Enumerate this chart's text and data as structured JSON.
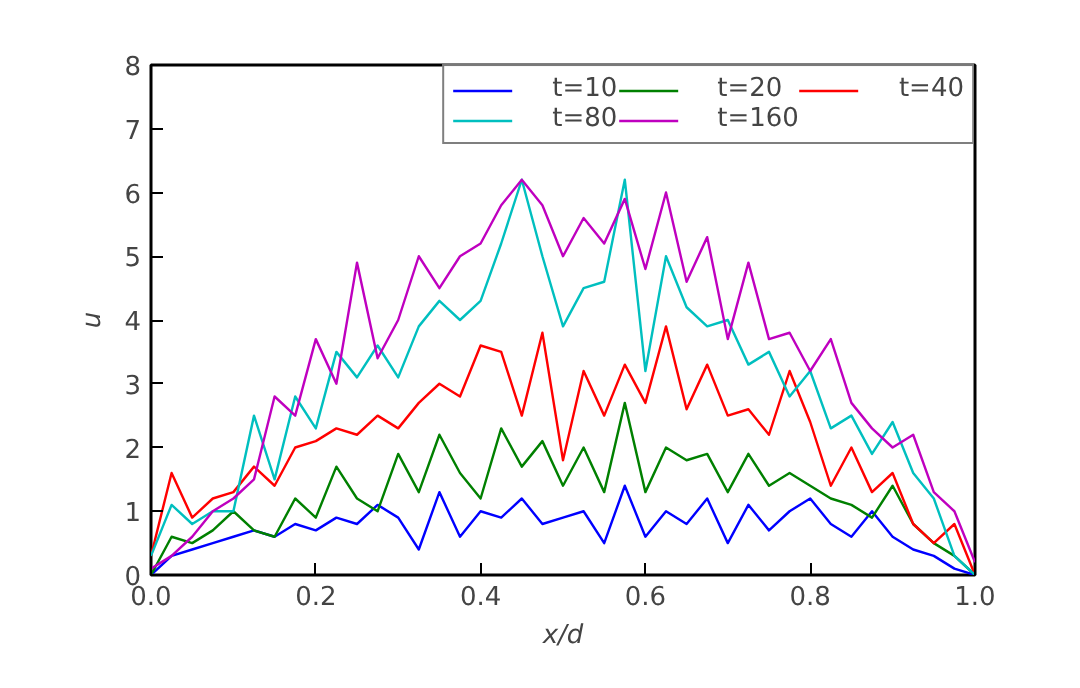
{
  "chart_data": {
    "type": "line",
    "xlabel": "x/d",
    "ylabel": "u",
    "xlim": [
      0.0,
      1.0
    ],
    "ylim": [
      0,
      8
    ],
    "xticks": [
      {
        "value": 0,
        "label": "0.0"
      },
      {
        "value": 0.2,
        "label": "0.2"
      },
      {
        "value": 0.4,
        "label": "0.4"
      },
      {
        "value": 0.6,
        "label": "0.6"
      },
      {
        "value": 0.8,
        "label": "0.8"
      },
      {
        "value": 1,
        "label": "1.0"
      }
    ],
    "yticks": [
      0,
      1,
      2,
      3,
      4,
      5,
      6,
      7,
      8
    ],
    "grid": false,
    "legend": "top right",
    "marker": "none",
    "line_style": "solid",
    "x": [
      0,
      0.025,
      0.05,
      0.075,
      0.1,
      0.125,
      0.15,
      0.175,
      0.2,
      0.225,
      0.25,
      0.275,
      0.3,
      0.325,
      0.35,
      0.375,
      0.4,
      0.425,
      0.45,
      0.475,
      0.5,
      0.525,
      0.55,
      0.575,
      0.6,
      0.625,
      0.65,
      0.675,
      0.7,
      0.725,
      0.75,
      0.775,
      0.8,
      0.825,
      0.85,
      0.875,
      0.9,
      0.925,
      0.95,
      0.975,
      1.0
    ],
    "series": [
      {
        "name": "t=10",
        "color": "#0000ff",
        "values": [
          0,
          0.3,
          0.4,
          0.5,
          0.6,
          0.7,
          0.6,
          0.8,
          0.7,
          0.9,
          0.8,
          1.1,
          0.9,
          0.4,
          1.3,
          0.6,
          1.0,
          0.9,
          1.2,
          0.8,
          0.9,
          1.0,
          0.5,
          1.4,
          0.6,
          1.0,
          0.8,
          1.2,
          0.5,
          1.1,
          0.7,
          1.0,
          1.2,
          0.8,
          0.6,
          1.0,
          0.6,
          0.4,
          0.3,
          0.1,
          0
        ]
      },
      {
        "name": "t=20",
        "color": "#008000",
        "values": [
          0,
          0.6,
          0.5,
          0.7,
          1.0,
          0.7,
          0.6,
          1.2,
          0.9,
          1.7,
          1.2,
          1.0,
          1.9,
          1.3,
          2.2,
          1.6,
          1.2,
          2.3,
          1.7,
          2.1,
          1.4,
          2.0,
          1.3,
          2.7,
          1.3,
          2.0,
          1.8,
          1.9,
          1.3,
          1.9,
          1.4,
          1.6,
          1.4,
          1.2,
          1.1,
          0.9,
          1.4,
          0.8,
          0.5,
          0.3,
          0
        ]
      },
      {
        "name": "t=40",
        "color": "#ff0000",
        "values": [
          0.3,
          1.6,
          0.9,
          1.2,
          1.3,
          1.7,
          1.4,
          2.0,
          2.1,
          2.3,
          2.2,
          2.5,
          2.3,
          2.7,
          3.0,
          2.8,
          3.6,
          3.5,
          2.5,
          3.8,
          1.8,
          3.2,
          2.5,
          3.3,
          2.7,
          3.9,
          2.6,
          3.3,
          2.5,
          2.6,
          2.2,
          3.2,
          2.4,
          1.4,
          2.0,
          1.3,
          1.6,
          0.8,
          0.5,
          0.8,
          0
        ]
      },
      {
        "name": "t=80",
        "color": "#00bfbf",
        "values": [
          0.3,
          1.1,
          0.8,
          1.0,
          1.0,
          2.5,
          1.5,
          2.8,
          2.3,
          3.5,
          3.1,
          3.6,
          3.1,
          3.9,
          4.3,
          4.0,
          4.3,
          5.2,
          6.2,
          5.0,
          3.9,
          4.5,
          4.6,
          6.2,
          3.2,
          5.0,
          4.2,
          3.9,
          4.0,
          3.3,
          3.5,
          2.8,
          3.2,
          2.3,
          2.5,
          1.9,
          2.4,
          1.6,
          1.2,
          0.3,
          0
        ]
      },
      {
        "name": "t=160",
        "color": "#bf00bf",
        "values": [
          0.1,
          0.3,
          0.6,
          1.0,
          1.2,
          1.5,
          2.8,
          2.5,
          3.7,
          3.0,
          4.9,
          3.4,
          4.0,
          5.0,
          4.5,
          5.0,
          5.2,
          5.8,
          6.2,
          5.8,
          5.0,
          5.6,
          5.2,
          5.9,
          4.8,
          6.0,
          4.6,
          5.3,
          3.7,
          4.9,
          3.7,
          3.8,
          3.2,
          3.7,
          2.7,
          2.3,
          2.0,
          2.2,
          1.3,
          1.0,
          0.2
        ]
      }
    ]
  }
}
